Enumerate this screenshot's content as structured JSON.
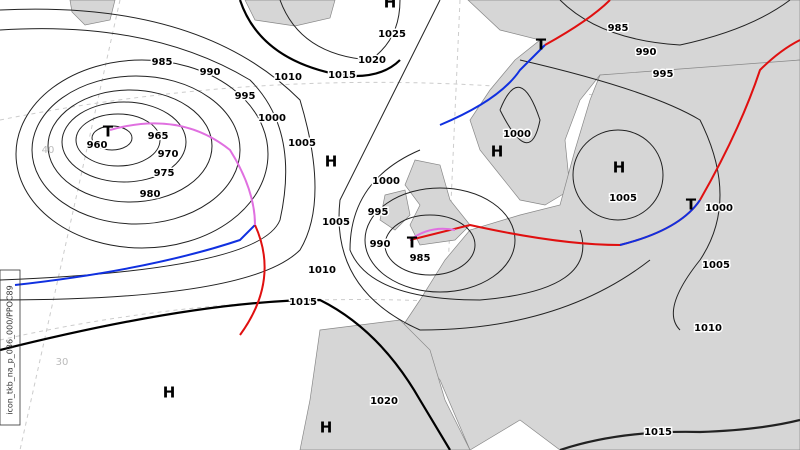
{
  "isobar_labels": [
    "985",
    "990",
    "995",
    "1000",
    "1005",
    "1010",
    "1015",
    "1020",
    "1025",
    "965",
    "970",
    "975",
    "980",
    "960",
    "1000",
    "995",
    "990",
    "985",
    "1005",
    "1010",
    "1015",
    "1020",
    "1000",
    "985",
    "990",
    "995",
    "1005",
    "1000",
    "1005",
    "1010",
    "1015"
  ],
  "pressure_centers": [
    "H",
    "H",
    "H",
    "H",
    "H",
    "H",
    "T",
    "T",
    "T",
    "T"
  ],
  "latitude_labels": [
    "40",
    "30"
  ],
  "model_run": "icon_tkb_na_p_036_000/PPOC89"
}
